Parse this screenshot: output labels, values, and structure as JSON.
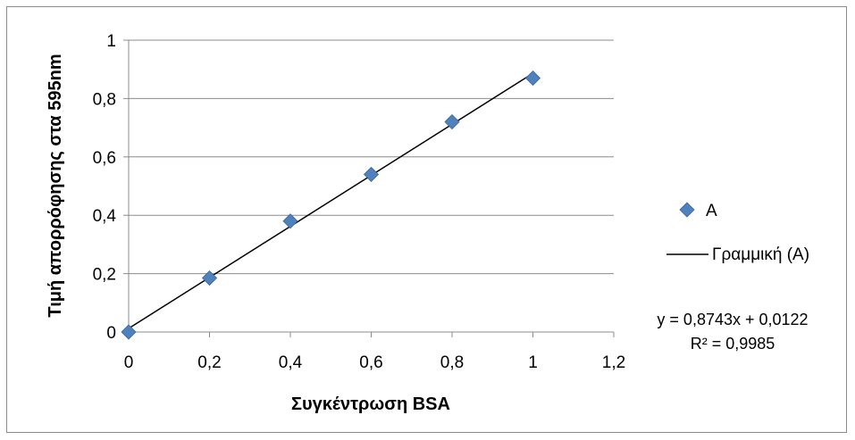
{
  "chart_data": {
    "type": "scatter",
    "xlabel": "Συγκέντρωση BSA",
    "ylabel": "Τιμή απορρόφησης στα 595nm",
    "xlim": [
      0,
      1.2
    ],
    "ylim": [
      0,
      1
    ],
    "x_ticks": [
      "0",
      "0,2",
      "0,4",
      "0,6",
      "0,8",
      "1",
      "1,2"
    ],
    "y_ticks": [
      "0",
      "0,2",
      "0,4",
      "0,6",
      "0,8",
      "1"
    ],
    "x_tick_values": [
      0,
      0.2,
      0.4,
      0.6,
      0.8,
      1.0,
      1.2
    ],
    "y_tick_values": [
      0,
      0.2,
      0.4,
      0.6,
      0.8,
      1.0
    ],
    "grid": "horizontal",
    "legend_position": "right",
    "series": [
      {
        "name": "A",
        "marker": "diamond",
        "color": "#4f81bd",
        "x": [
          0,
          0.2,
          0.4,
          0.6,
          0.8,
          1.0
        ],
        "y": [
          0,
          0.185,
          0.38,
          0.54,
          0.72,
          0.87
        ]
      }
    ],
    "trendline": {
      "name": "Γραμμική (A)",
      "type": "linear",
      "slope": 0.8743,
      "intercept": 0.0122,
      "color": "#000000",
      "equation": "y = 0,8743x + 0,0122",
      "r_squared": "R² = 0,9985"
    }
  }
}
